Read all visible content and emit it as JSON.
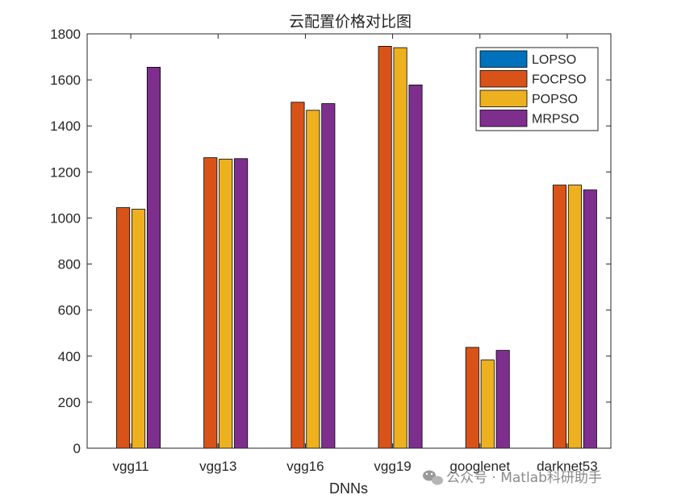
{
  "chart_data": {
    "type": "bar",
    "title": "云配置价格对比图",
    "xlabel": "DNNs",
    "ylabel": "",
    "ylim": [
      0,
      1800
    ],
    "yticks": [
      0,
      200,
      400,
      600,
      800,
      1000,
      1200,
      1400,
      1600,
      1800
    ],
    "categories": [
      "vgg11",
      "vgg13",
      "vgg16",
      "vgg19",
      "googlenet",
      "darknet53"
    ],
    "series": [
      {
        "name": "LOPSO",
        "color": "#0072BD",
        "values": [
          0,
          0,
          0,
          0,
          0,
          0
        ]
      },
      {
        "name": "FOCPSO",
        "color": "#D95319",
        "values": [
          1045,
          1262,
          1503,
          1746,
          438,
          1143
        ]
      },
      {
        "name": "POPSO",
        "color": "#EDB120",
        "values": [
          1038,
          1256,
          1468,
          1740,
          383,
          1143
        ]
      },
      {
        "name": "MRPSO",
        "color": "#7E2F8E",
        "values": [
          1655,
          1258,
          1497,
          1578,
          425,
          1122
        ]
      }
    ],
    "legend_position": "top-right",
    "grid": false
  },
  "watermark": {
    "icon": "wechat-icon",
    "text": "公众号 · Matlab科研助手"
  }
}
